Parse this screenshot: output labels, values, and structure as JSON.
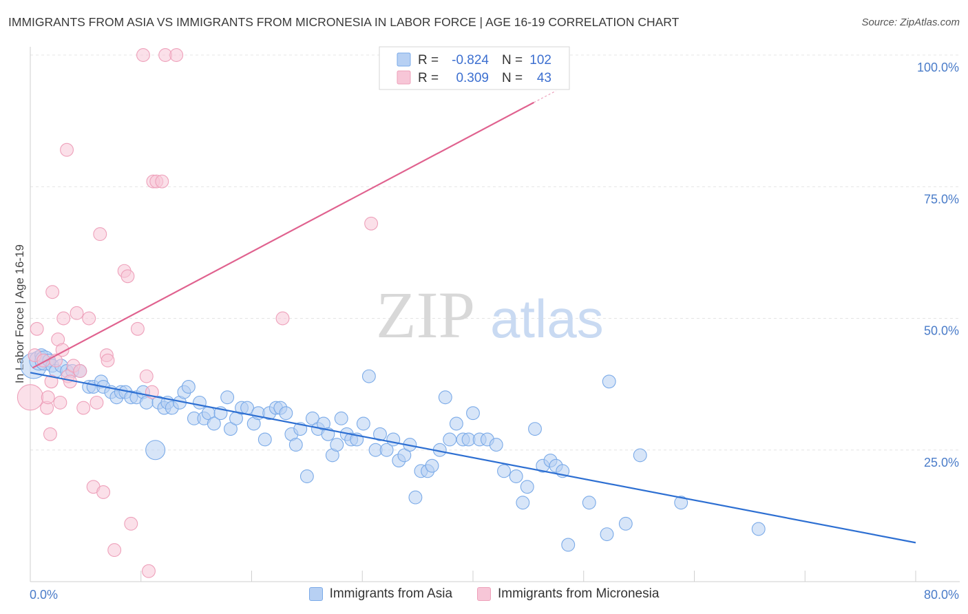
{
  "chart_data": {
    "type": "scatter",
    "title": "IMMIGRANTS FROM ASIA VS IMMIGRANTS FROM MICRONESIA IN LABOR FORCE | AGE 16-19 CORRELATION CHART",
    "source": "Source: ZipAtlas.com",
    "watermark": {
      "zip": "ZIP",
      "atlas": "atlas"
    },
    "ylabel": "In Labor Force | Age 16-19",
    "xlim": [
      0,
      80
    ],
    "ylim": [
      0,
      100
    ],
    "x_tick_labels": [
      "0.0%",
      "80.0%"
    ],
    "y_ticks": [
      25,
      50,
      75,
      100
    ],
    "y_tick_labels": [
      "25.0%",
      "50.0%",
      "75.0%",
      "100.0%"
    ],
    "stats": {
      "r_label": "R =",
      "n_label": "N =",
      "asia": {
        "r": "-0.824",
        "n": "102"
      },
      "micronesia": {
        "r": "0.309",
        "n": "43"
      }
    },
    "series": [
      {
        "name": "Immigrants from Asia",
        "color": "#7aaae8",
        "fill": "#b7d0f3",
        "line_color": "#2d6fd2",
        "trend": {
          "x0": 0,
          "y0": 39.7,
          "x1": 80,
          "y1": 7.4
        },
        "points": [
          [
            0.3,
            41,
            4
          ],
          [
            0.8,
            42,
            3
          ],
          [
            1.0,
            43,
            2
          ],
          [
            1.3,
            42,
            3
          ],
          [
            1.7,
            42,
            2
          ],
          [
            2.0,
            41,
            2
          ],
          [
            2.3,
            40,
            2
          ],
          [
            2.8,
            41,
            2
          ],
          [
            3.3,
            40,
            2
          ],
          [
            3.8,
            40,
            2
          ],
          [
            4.5,
            40,
            2
          ],
          [
            5.3,
            37,
            2
          ],
          [
            5.7,
            37,
            2
          ],
          [
            6.4,
            38,
            2
          ],
          [
            6.6,
            37,
            2
          ],
          [
            7.3,
            36,
            2
          ],
          [
            7.8,
            35,
            2
          ],
          [
            8.2,
            36,
            2
          ],
          [
            8.6,
            36,
            2
          ],
          [
            9.1,
            35,
            2
          ],
          [
            9.6,
            35,
            2
          ],
          [
            10.2,
            36,
            2
          ],
          [
            10.5,
            34,
            2
          ],
          [
            11.3,
            25,
            3
          ],
          [
            11.6,
            34,
            2
          ],
          [
            12.1,
            33,
            2
          ],
          [
            12.4,
            34,
            2
          ],
          [
            12.8,
            33,
            2
          ],
          [
            13.5,
            34,
            2
          ],
          [
            13.9,
            36,
            2
          ],
          [
            14.3,
            37,
            2
          ],
          [
            14.8,
            31,
            2
          ],
          [
            15.3,
            34,
            2
          ],
          [
            15.7,
            31,
            2
          ],
          [
            16.1,
            32,
            2
          ],
          [
            16.6,
            30,
            2
          ],
          [
            17.2,
            32,
            2
          ],
          [
            17.8,
            35,
            2
          ],
          [
            18.1,
            29,
            2
          ],
          [
            18.6,
            31,
            2
          ],
          [
            19.1,
            33,
            2
          ],
          [
            19.6,
            33,
            2
          ],
          [
            20.2,
            30,
            2
          ],
          [
            20.6,
            32,
            2
          ],
          [
            21.2,
            27,
            2
          ],
          [
            21.6,
            32,
            2
          ],
          [
            22.2,
            33,
            2
          ],
          [
            22.6,
            33,
            2
          ],
          [
            23.1,
            32,
            2
          ],
          [
            23.6,
            28,
            2
          ],
          [
            24.0,
            26,
            2
          ],
          [
            24.4,
            29,
            2
          ],
          [
            25.0,
            20,
            2
          ],
          [
            25.5,
            31,
            2
          ],
          [
            26.0,
            29,
            2
          ],
          [
            26.5,
            30,
            2
          ],
          [
            26.9,
            28,
            2
          ],
          [
            27.3,
            24,
            2
          ],
          [
            27.7,
            26,
            2
          ],
          [
            28.1,
            31,
            2
          ],
          [
            28.6,
            28,
            2
          ],
          [
            29.0,
            27,
            2
          ],
          [
            29.5,
            27,
            2
          ],
          [
            30.1,
            30,
            2
          ],
          [
            30.6,
            39,
            2
          ],
          [
            31.2,
            25,
            2
          ],
          [
            31.6,
            28,
            2
          ],
          [
            32.2,
            25,
            2
          ],
          [
            32.8,
            27,
            2
          ],
          [
            33.3,
            23,
            2
          ],
          [
            33.8,
            24,
            2
          ],
          [
            34.3,
            26,
            2
          ],
          [
            34.8,
            16,
            2
          ],
          [
            35.3,
            21,
            2
          ],
          [
            35.9,
            21,
            2
          ],
          [
            36.3,
            22,
            2
          ],
          [
            37.0,
            25,
            2
          ],
          [
            37.5,
            35,
            2
          ],
          [
            37.9,
            27,
            2
          ],
          [
            38.5,
            30,
            2
          ],
          [
            39.1,
            27,
            2
          ],
          [
            39.6,
            27,
            2
          ],
          [
            40.0,
            32,
            2
          ],
          [
            40.6,
            27,
            2
          ],
          [
            41.3,
            27,
            2
          ],
          [
            42.1,
            26,
            2
          ],
          [
            42.8,
            21,
            2
          ],
          [
            43.9,
            20,
            2
          ],
          [
            44.5,
            15,
            2
          ],
          [
            44.9,
            18,
            2
          ],
          [
            45.6,
            29,
            2
          ],
          [
            46.3,
            22,
            2
          ],
          [
            47.0,
            23,
            2
          ],
          [
            47.5,
            22,
            2
          ],
          [
            48.1,
            21,
            2
          ],
          [
            48.6,
            7,
            2
          ],
          [
            50.5,
            15,
            2
          ],
          [
            52.1,
            9,
            2
          ],
          [
            52.3,
            38,
            2
          ],
          [
            53.8,
            11,
            2
          ],
          [
            55.1,
            24,
            2
          ],
          [
            58.8,
            15,
            2
          ],
          [
            65.8,
            10,
            2
          ]
        ]
      },
      {
        "name": "Immigrants from Micronesia",
        "color": "#eea0ba",
        "fill": "#f7c6d7",
        "line_color": "#e0628f",
        "trend": {
          "x0": 0.2,
          "y0": 40.6,
          "x1": 45.5,
          "y1": 91.0
        },
        "trend_dashed": {
          "x0": 45.5,
          "y0": 91.0,
          "x1": 47.5,
          "y1": 93.2
        },
        "points": [
          [
            0.0,
            35,
            4
          ],
          [
            0.4,
            43,
            2
          ],
          [
            0.6,
            48,
            2
          ],
          [
            1.2,
            42,
            2
          ],
          [
            1.5,
            33,
            2
          ],
          [
            1.6,
            35,
            2
          ],
          [
            1.8,
            28,
            2
          ],
          [
            1.9,
            38,
            2
          ],
          [
            2.0,
            55,
            2
          ],
          [
            2.3,
            42,
            2
          ],
          [
            2.5,
            46,
            2
          ],
          [
            2.7,
            34,
            2
          ],
          [
            2.9,
            44,
            2
          ],
          [
            3.0,
            50,
            2
          ],
          [
            3.3,
            82,
            2
          ],
          [
            3.4,
            39,
            2
          ],
          [
            3.6,
            38,
            2
          ],
          [
            3.9,
            41,
            2
          ],
          [
            4.2,
            51,
            2
          ],
          [
            4.5,
            40,
            2
          ],
          [
            4.8,
            33,
            2
          ],
          [
            5.3,
            50,
            2
          ],
          [
            5.7,
            18,
            2
          ],
          [
            6.0,
            34,
            2
          ],
          [
            6.3,
            66,
            2
          ],
          [
            6.6,
            17,
            2
          ],
          [
            6.9,
            43,
            2
          ],
          [
            7.0,
            42,
            2
          ],
          [
            7.6,
            6,
            2
          ],
          [
            8.5,
            59,
            2
          ],
          [
            8.8,
            58,
            2
          ],
          [
            9.1,
            11,
            2
          ],
          [
            9.7,
            48,
            2
          ],
          [
            10.2,
            100,
            2
          ],
          [
            10.5,
            39,
            2
          ],
          [
            10.7,
            2,
            2
          ],
          [
            11.0,
            36,
            2
          ],
          [
            11.1,
            76,
            2
          ],
          [
            11.4,
            76,
            2
          ],
          [
            11.9,
            76,
            2
          ],
          [
            12.2,
            100,
            2
          ],
          [
            13.2,
            100,
            2
          ],
          [
            22.8,
            50,
            2
          ],
          [
            30.8,
            68,
            2
          ]
        ]
      }
    ]
  }
}
